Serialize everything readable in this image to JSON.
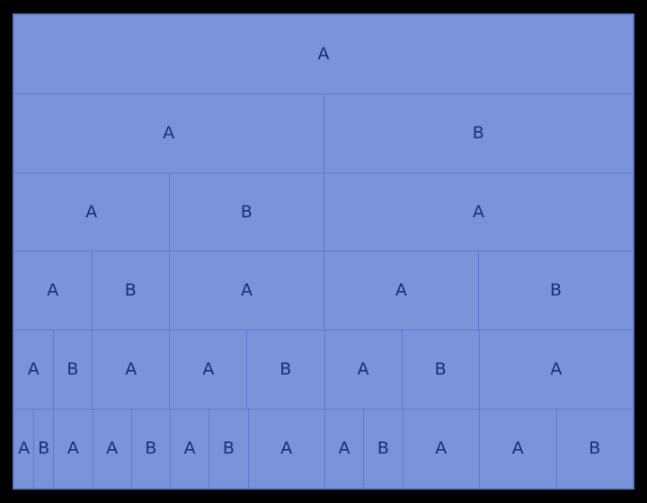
{
  "colors": {
    "background": "#000000",
    "cell_fill": "#7b93d9",
    "grid_line": "#5e7bce",
    "label_text": "#1b2d7c"
  },
  "diagram": {
    "type": "substitution-icicle",
    "rows": [
      {
        "cells": [
          {
            "label": "A",
            "weight": 32
          }
        ]
      },
      {
        "cells": [
          {
            "label": "A",
            "weight": 16
          },
          {
            "label": "B",
            "weight": 16
          }
        ]
      },
      {
        "cells": [
          {
            "label": "A",
            "weight": 8
          },
          {
            "label": "B",
            "weight": 8
          },
          {
            "label": "A",
            "weight": 16
          }
        ]
      },
      {
        "cells": [
          {
            "label": "A",
            "weight": 4
          },
          {
            "label": "B",
            "weight": 4
          },
          {
            "label": "A",
            "weight": 8
          },
          {
            "label": "A",
            "weight": 8
          },
          {
            "label": "B",
            "weight": 8
          }
        ]
      },
      {
        "cells": [
          {
            "label": "A",
            "weight": 2
          },
          {
            "label": "B",
            "weight": 2
          },
          {
            "label": "A",
            "weight": 4
          },
          {
            "label": "A",
            "weight": 4
          },
          {
            "label": "B",
            "weight": 4
          },
          {
            "label": "A",
            "weight": 4
          },
          {
            "label": "B",
            "weight": 4
          },
          {
            "label": "A",
            "weight": 8
          }
        ]
      },
      {
        "cells": [
          {
            "label": "A",
            "weight": 1
          },
          {
            "label": "B",
            "weight": 1
          },
          {
            "label": "A",
            "weight": 2
          },
          {
            "label": "A",
            "weight": 2
          },
          {
            "label": "B",
            "weight": 2
          },
          {
            "label": "A",
            "weight": 2
          },
          {
            "label": "B",
            "weight": 2
          },
          {
            "label": "A",
            "weight": 4
          },
          {
            "label": "A",
            "weight": 2
          },
          {
            "label": "B",
            "weight": 2
          },
          {
            "label": "A",
            "weight": 4
          },
          {
            "label": "A",
            "weight": 4
          },
          {
            "label": "B",
            "weight": 4
          }
        ]
      }
    ]
  }
}
